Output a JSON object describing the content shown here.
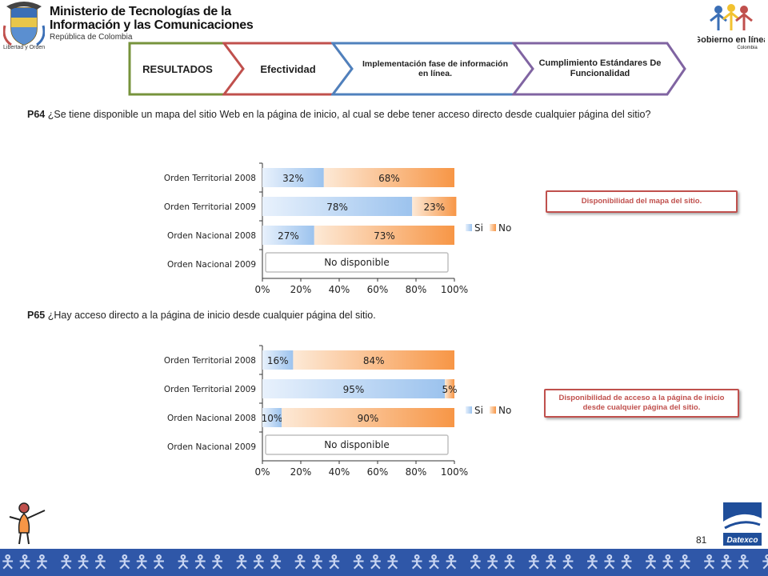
{
  "header": {
    "ministry_line1": "Ministerio de Tecnologías de la",
    "ministry_line2": "Información y las Comunicaciones",
    "ministry_line3": "República de Colombia",
    "motto": "Libertad y Orden",
    "gel_logo_line1": "Gobierno en línea",
    "gel_logo_line2": "Colombia"
  },
  "tabs": [
    {
      "label": "RESULTADOS",
      "color": "#77933c"
    },
    {
      "label": "Efectividad",
      "color": "#c0504d"
    },
    {
      "label": "Implementación fase de información en línea.",
      "color": "#4f81bd"
    },
    {
      "label": "Cumplimiento Estándares De Funcionalidad",
      "color": "#8064a2"
    }
  ],
  "questions": {
    "p64_code": "P64",
    "p64_text": "¿Se tiene disponible un mapa del sitio Web en la página de inicio, al cual se debe tener acceso directo desde cualquier página del sitio?",
    "p65_code": "P65",
    "p65_text": "¿Hay acceso directo a la página de inicio desde cualquier página del sitio."
  },
  "info_boxes": {
    "p64": "Disponibilidad del mapa del sitio.",
    "p65": "Disponibilidad de acceso a la página de inicio desde cualquier página del sitio."
  },
  "chart_data": [
    {
      "type": "bar",
      "orientation": "horizontal",
      "stacked": true,
      "categories": [
        "Orden Territorial 2008",
        "Orden Territorial 2009",
        "Orden Nacional 2008",
        "Orden Nacional 2009"
      ],
      "series": [
        {
          "name": "Si",
          "values": [
            32,
            78,
            27,
            null
          ],
          "labels": [
            "32%",
            "78%",
            "27%",
            ""
          ],
          "color": "#9cc3ee"
        },
        {
          "name": "No",
          "values": [
            68,
            23,
            73,
            null
          ],
          "labels": [
            "68%",
            "23%",
            "73%",
            ""
          ],
          "color": "#f79646"
        }
      ],
      "xlim": [
        0,
        100
      ],
      "xticks": [
        "0%",
        "20%",
        "40%",
        "60%",
        "80%",
        "100%"
      ],
      "legend": "right",
      "not_available_label": "No disponible"
    },
    {
      "type": "bar",
      "orientation": "horizontal",
      "stacked": true,
      "categories": [
        "Orden Territorial 2008",
        "Orden Territorial 2009",
        "Orden Nacional 2008",
        "Orden Nacional 2009"
      ],
      "series": [
        {
          "name": "Si",
          "values": [
            16,
            95,
            10,
            null
          ],
          "labels": [
            "16%",
            "95%",
            "10%",
            ""
          ],
          "color": "#9cc3ee"
        },
        {
          "name": "No",
          "values": [
            84,
            5,
            90,
            null
          ],
          "labels": [
            "84%",
            "5%",
            "90%",
            ""
          ],
          "color": "#f79646"
        }
      ],
      "xlim": [
        0,
        100
      ],
      "xticks": [
        "0%",
        "20%",
        "40%",
        "60%",
        "80%",
        "100%"
      ],
      "legend": "right",
      "not_available_label": "No disponible"
    }
  ],
  "footer": {
    "page_number": "81",
    "datexco_label": "Datexco"
  }
}
